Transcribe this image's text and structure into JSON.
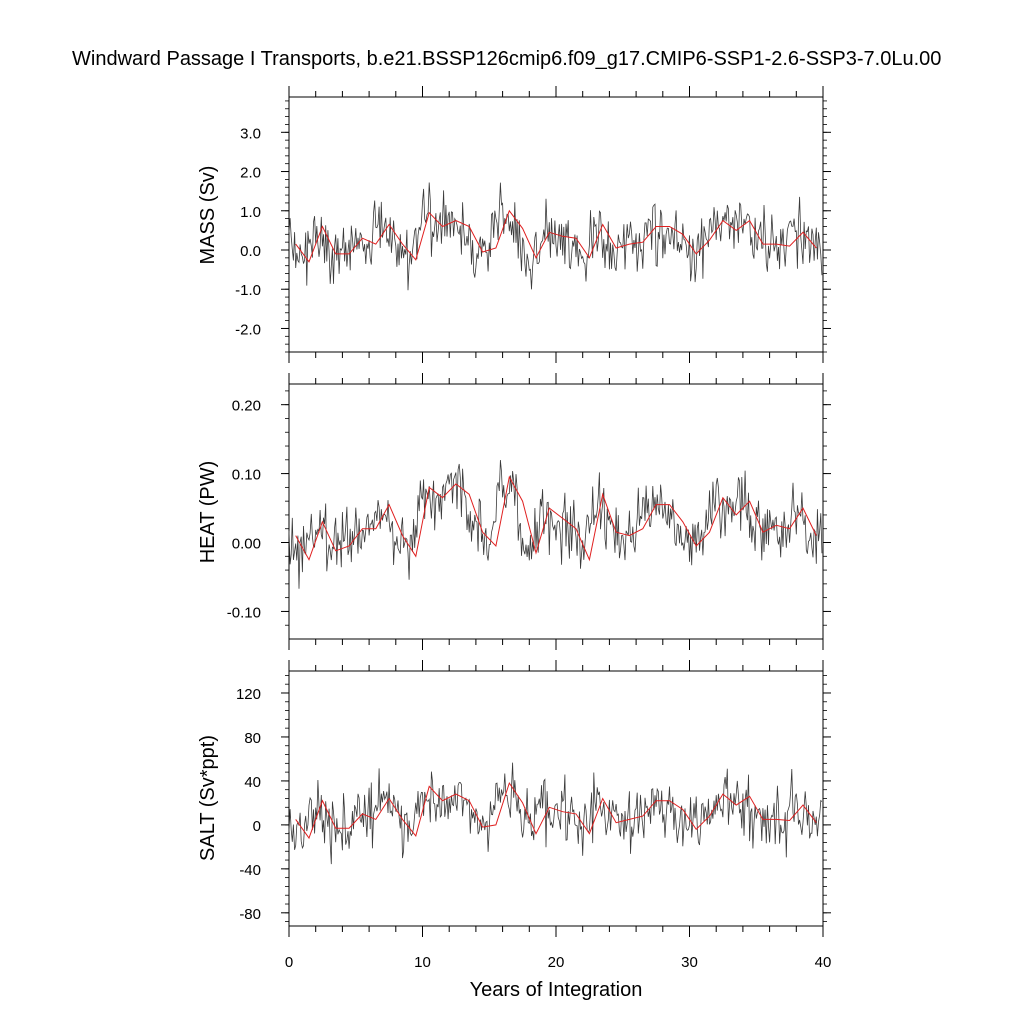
{
  "chart_data": {
    "title": "Windward Passage I Transports, b.e21.BSSP126cmip6.f09_g17.CMIP6-SSP1-2.6-SSP3-7.0Lu.00",
    "xlabel": "Years of Integration",
    "x_ticks": [
      0,
      10,
      20,
      30,
      40
    ],
    "xlim": [
      0,
      40
    ],
    "colors": {
      "monthly": "#3a3a3a",
      "annual": "#e02020"
    },
    "panels": [
      {
        "type": "line",
        "ylabel": "MASS (Sv)",
        "ylim": [
          -2.6,
          3.9
        ],
        "y_ticks": [
          -2.0,
          -1.0,
          0.0,
          1.0,
          2.0,
          3.0
        ],
        "y_tick_labels": [
          "-2.0",
          "-1.0",
          "0.0",
          "1.0",
          "2.0",
          "3.0"
        ],
        "annual_mean": [
          0.15,
          -0.3,
          0.6,
          -0.1,
          -0.1,
          0.3,
          0.15,
          0.65,
          0.15,
          -0.25,
          0.95,
          0.6,
          0.75,
          0.6,
          -0.05,
          0.05,
          1.0,
          0.55,
          -0.2,
          0.45,
          0.35,
          0.3,
          -0.2,
          0.65,
          0.05,
          0.15,
          0.2,
          0.6,
          0.6,
          0.4,
          -0.1,
          0.25,
          0.75,
          0.5,
          0.75,
          0.15,
          0.15,
          0.1,
          0.45,
          0.05
        ]
      },
      {
        "type": "line",
        "ylabel": "HEAT (PW)",
        "ylim": [
          -0.14,
          0.23
        ],
        "y_ticks": [
          -0.1,
          0.0,
          0.1,
          0.2
        ],
        "y_tick_labels": [
          "-0.10",
          "0.00",
          "0.10",
          "0.20"
        ],
        "annual_mean": [
          0.01,
          -0.025,
          0.03,
          -0.012,
          -0.005,
          0.02,
          0.02,
          0.055,
          0.01,
          -0.02,
          0.08,
          0.065,
          0.085,
          0.07,
          0.015,
          -0.005,
          0.095,
          0.06,
          -0.015,
          0.05,
          0.035,
          0.02,
          -0.025,
          0.07,
          0.015,
          0.01,
          0.02,
          0.055,
          0.055,
          0.03,
          -0.005,
          0.015,
          0.065,
          0.04,
          0.06,
          0.015,
          0.025,
          0.02,
          0.05,
          0.01
        ]
      },
      {
        "type": "line",
        "ylabel": "SALT (Sv*ppt)",
        "ylim": [
          -92,
          140
        ],
        "y_ticks": [
          -80,
          -40,
          0,
          40,
          80,
          120
        ],
        "y_tick_labels": [
          "-80",
          "-40",
          "0",
          "40",
          "80",
          "120"
        ],
        "annual_mean": [
          5,
          -12,
          22,
          -3,
          -3,
          10,
          5,
          24,
          5,
          -10,
          35,
          22,
          28,
          22,
          -2,
          0,
          38,
          20,
          -8,
          16,
          12,
          10,
          -8,
          24,
          2,
          5,
          8,
          22,
          22,
          14,
          -4,
          8,
          28,
          18,
          26,
          5,
          5,
          4,
          18,
          2
        ]
      }
    ]
  }
}
